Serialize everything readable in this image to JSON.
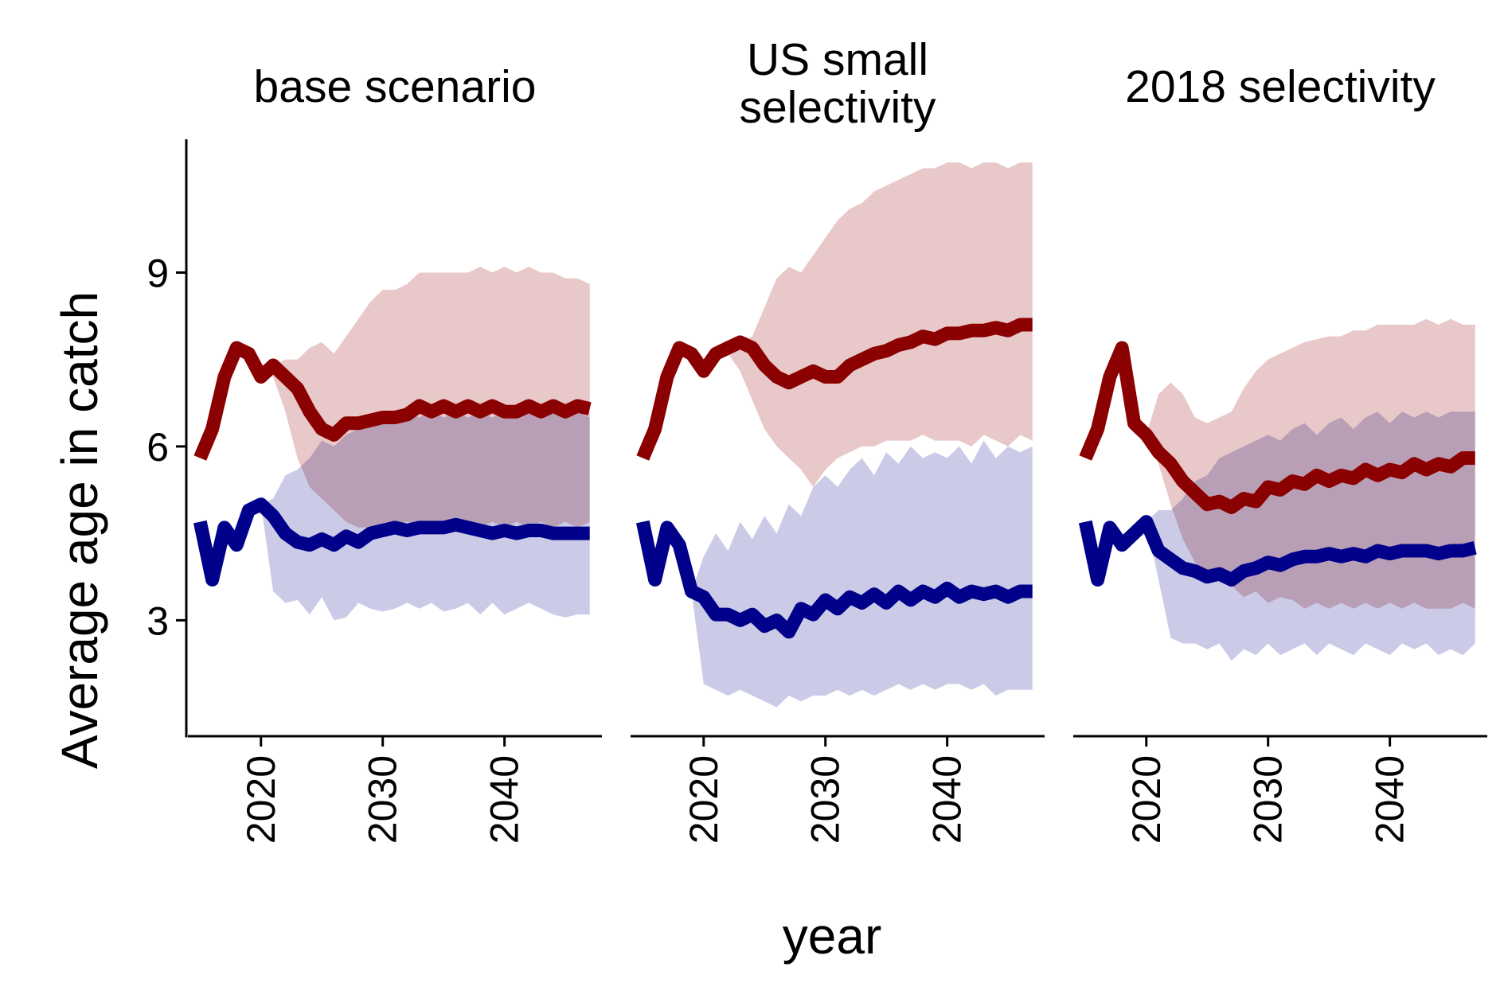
{
  "chart_data": {
    "type": "area",
    "xlabel": "year",
    "ylabel": "Average age in catch",
    "x_ticks": [
      2020,
      2030,
      2040
    ],
    "y_ticks": [
      3,
      6,
      9
    ],
    "xlim": [
      2014,
      2048
    ],
    "ylim": [
      1,
      11.3
    ],
    "grid": false,
    "legend": "none",
    "series_colors": {
      "red_line": "#8B0000",
      "red_band": "#E8C8C8",
      "blue_line": "#00008B",
      "blue_band": "#CBCBE8",
      "overlap": "#B6A3BE"
    },
    "panels": [
      {
        "title_lines": [
          "base scenario"
        ],
        "series": [
          {
            "color": "red",
            "x": [
              2015,
              2016,
              2017,
              2018,
              2019,
              2020,
              2021,
              2022,
              2023,
              2024,
              2025,
              2026,
              2027,
              2028,
              2029,
              2030,
              2031,
              2032,
              2033,
              2034,
              2035,
              2036,
              2037,
              2038,
              2039,
              2040,
              2041,
              2042,
              2043,
              2044,
              2045,
              2046,
              2047
            ],
            "median": [
              5.8,
              6.3,
              7.2,
              7.7,
              7.6,
              7.2,
              7.4,
              7.2,
              7.0,
              6.6,
              6.3,
              6.2,
              6.4,
              6.4,
              6.45,
              6.5,
              6.5,
              6.55,
              6.7,
              6.6,
              6.7,
              6.6,
              6.7,
              6.6,
              6.7,
              6.6,
              6.6,
              6.7,
              6.6,
              6.7,
              6.6,
              6.7,
              6.65
            ],
            "upper": [
              5.8,
              6.3,
              7.2,
              7.7,
              7.6,
              7.2,
              7.4,
              7.5,
              7.5,
              7.7,
              7.8,
              7.6,
              7.9,
              8.2,
              8.5,
              8.7,
              8.7,
              8.8,
              9.0,
              9.0,
              9.0,
              9.0,
              9.0,
              9.1,
              9.0,
              9.1,
              9.0,
              9.1,
              9.0,
              9.0,
              8.9,
              8.9,
              8.8
            ],
            "lower": [
              5.8,
              6.3,
              7.2,
              7.7,
              7.6,
              7.2,
              7.2,
              6.6,
              5.8,
              5.3,
              5.1,
              4.9,
              4.7,
              4.6,
              4.6,
              4.6,
              4.6,
              4.7,
              4.6,
              4.7,
              4.6,
              4.7,
              4.6,
              4.6,
              4.7,
              4.6,
              4.7,
              4.6,
              4.7,
              4.6,
              4.7,
              4.6,
              4.7
            ]
          },
          {
            "color": "blue",
            "x": [
              2015,
              2016,
              2017,
              2018,
              2019,
              2020,
              2021,
              2022,
              2023,
              2024,
              2025,
              2026,
              2027,
              2028,
              2029,
              2030,
              2031,
              2032,
              2033,
              2034,
              2035,
              2036,
              2037,
              2038,
              2039,
              2040,
              2041,
              2042,
              2043,
              2044,
              2045,
              2046,
              2047
            ],
            "median": [
              4.7,
              3.7,
              4.6,
              4.3,
              4.9,
              5.0,
              4.8,
              4.5,
              4.35,
              4.3,
              4.4,
              4.3,
              4.45,
              4.35,
              4.5,
              4.55,
              4.6,
              4.55,
              4.6,
              4.6,
              4.6,
              4.65,
              4.6,
              4.55,
              4.5,
              4.55,
              4.5,
              4.55,
              4.55,
              4.5,
              4.5,
              4.5,
              4.5
            ],
            "upper": [
              4.7,
              3.7,
              4.6,
              4.3,
              4.9,
              5.0,
              5.1,
              5.5,
              5.6,
              5.8,
              6.1,
              6.0,
              6.2,
              6.3,
              6.4,
              6.5,
              6.5,
              6.6,
              6.5,
              6.6,
              6.5,
              6.6,
              6.5,
              6.6,
              6.5,
              6.6,
              6.5,
              6.6,
              6.5,
              6.6,
              6.5,
              6.6,
              6.5
            ],
            "lower": [
              4.7,
              3.7,
              4.6,
              4.3,
              4.9,
              5.0,
              3.5,
              3.3,
              3.35,
              3.1,
              3.4,
              3.0,
              3.05,
              3.3,
              3.2,
              3.15,
              3.2,
              3.3,
              3.2,
              3.3,
              3.15,
              3.2,
              3.3,
              3.1,
              3.3,
              3.1,
              3.2,
              3.3,
              3.2,
              3.1,
              3.05,
              3.1,
              3.1
            ]
          }
        ]
      },
      {
        "title_lines": [
          "US small",
          "selectivity"
        ],
        "series": [
          {
            "color": "red",
            "x": [
              2015,
              2016,
              2017,
              2018,
              2019,
              2020,
              2021,
              2022,
              2023,
              2024,
              2025,
              2026,
              2027,
              2028,
              2029,
              2030,
              2031,
              2032,
              2033,
              2034,
              2035,
              2036,
              2037,
              2038,
              2039,
              2040,
              2041,
              2042,
              2043,
              2044,
              2045,
              2046,
              2047
            ],
            "median": [
              5.8,
              6.3,
              7.2,
              7.7,
              7.6,
              7.3,
              7.6,
              7.7,
              7.8,
              7.7,
              7.4,
              7.2,
              7.1,
              7.2,
              7.3,
              7.2,
              7.2,
              7.4,
              7.5,
              7.6,
              7.65,
              7.75,
              7.8,
              7.9,
              7.85,
              7.95,
              7.95,
              8.0,
              8.0,
              8.05,
              8.0,
              8.1,
              8.1
            ],
            "upper": [
              5.8,
              6.3,
              7.2,
              7.7,
              7.6,
              7.3,
              7.6,
              7.7,
              7.8,
              7.9,
              8.4,
              8.9,
              9.1,
              9.0,
              9.3,
              9.6,
              9.9,
              10.1,
              10.2,
              10.4,
              10.5,
              10.6,
              10.7,
              10.8,
              10.8,
              10.9,
              10.9,
              10.8,
              10.9,
              10.9,
              10.8,
              10.9,
              10.9
            ],
            "lower": [
              5.8,
              6.3,
              7.2,
              7.7,
              7.6,
              7.3,
              7.6,
              7.6,
              7.3,
              6.8,
              6.3,
              6.0,
              5.8,
              5.6,
              5.3,
              5.6,
              5.8,
              5.9,
              6.0,
              6.0,
              6.1,
              6.1,
              6.1,
              6.2,
              6.1,
              6.1,
              6.1,
              6.0,
              6.2,
              6.1,
              6.0,
              6.2,
              6.1
            ]
          },
          {
            "color": "blue",
            "x": [
              2015,
              2016,
              2017,
              2018,
              2019,
              2020,
              2021,
              2022,
              2023,
              2024,
              2025,
              2026,
              2027,
              2028,
              2029,
              2030,
              2031,
              2032,
              2033,
              2034,
              2035,
              2036,
              2037,
              2038,
              2039,
              2040,
              2041,
              2042,
              2043,
              2044,
              2045,
              2046,
              2047
            ],
            "median": [
              4.7,
              3.7,
              4.6,
              4.3,
              3.5,
              3.4,
              3.1,
              3.1,
              3.0,
              3.1,
              2.9,
              3.0,
              2.8,
              3.2,
              3.1,
              3.35,
              3.2,
              3.4,
              3.3,
              3.45,
              3.3,
              3.5,
              3.35,
              3.5,
              3.4,
              3.55,
              3.4,
              3.5,
              3.45,
              3.5,
              3.4,
              3.5,
              3.5
            ],
            "upper": [
              4.7,
              3.7,
              4.6,
              4.3,
              3.5,
              4.1,
              4.5,
              4.2,
              4.7,
              4.4,
              4.8,
              4.5,
              5.0,
              4.8,
              5.3,
              5.5,
              5.3,
              5.6,
              5.8,
              5.5,
              5.9,
              5.7,
              6.0,
              5.8,
              5.9,
              5.8,
              6.0,
              5.7,
              6.1,
              5.8,
              6.0,
              5.9,
              6.0
            ],
            "lower": [
              4.7,
              3.7,
              4.6,
              4.3,
              3.5,
              1.9,
              1.8,
              1.7,
              1.8,
              1.7,
              1.6,
              1.5,
              1.7,
              1.6,
              1.7,
              1.7,
              1.8,
              1.7,
              1.8,
              1.7,
              1.8,
              1.9,
              1.8,
              1.9,
              1.8,
              1.9,
              1.9,
              1.8,
              1.9,
              1.7,
              1.8,
              1.8,
              1.8
            ]
          }
        ]
      },
      {
        "title_lines": [
          "2018 selectivity"
        ],
        "series": [
          {
            "color": "red",
            "x": [
              2015,
              2016,
              2017,
              2018,
              2019,
              2020,
              2021,
              2022,
              2023,
              2024,
              2025,
              2026,
              2027,
              2028,
              2029,
              2030,
              2031,
              2032,
              2033,
              2034,
              2035,
              2036,
              2037,
              2038,
              2039,
              2040,
              2041,
              2042,
              2043,
              2044,
              2045,
              2046,
              2047
            ],
            "median": [
              5.8,
              6.3,
              7.2,
              7.7,
              6.4,
              6.2,
              5.9,
              5.7,
              5.4,
              5.2,
              5.0,
              5.05,
              4.95,
              5.1,
              5.05,
              5.3,
              5.25,
              5.4,
              5.35,
              5.5,
              5.4,
              5.5,
              5.45,
              5.6,
              5.5,
              5.6,
              5.55,
              5.7,
              5.6,
              5.7,
              5.65,
              5.8,
              5.8
            ],
            "upper": [
              5.8,
              6.3,
              7.2,
              7.7,
              6.4,
              6.2,
              6.9,
              7.1,
              6.9,
              6.5,
              6.4,
              6.5,
              6.6,
              7.0,
              7.3,
              7.5,
              7.6,
              7.7,
              7.8,
              7.85,
              7.9,
              7.9,
              8.0,
              8.0,
              8.1,
              8.1,
              8.1,
              8.1,
              8.2,
              8.1,
              8.2,
              8.1,
              8.1
            ],
            "lower": [
              5.8,
              6.3,
              7.2,
              7.7,
              6.4,
              6.2,
              5.7,
              5.0,
              4.4,
              4.0,
              3.8,
              3.7,
              3.6,
              3.4,
              3.5,
              3.3,
              3.4,
              3.35,
              3.2,
              3.3,
              3.2,
              3.3,
              3.2,
              3.3,
              3.2,
              3.3,
              3.2,
              3.3,
              3.2,
              3.2,
              3.2,
              3.3,
              3.2
            ]
          },
          {
            "color": "blue",
            "x": [
              2015,
              2016,
              2017,
              2018,
              2019,
              2020,
              2021,
              2022,
              2023,
              2024,
              2025,
              2026,
              2027,
              2028,
              2029,
              2030,
              2031,
              2032,
              2033,
              2034,
              2035,
              2036,
              2037,
              2038,
              2039,
              2040,
              2041,
              2042,
              2043,
              2044,
              2045,
              2046,
              2047
            ],
            "median": [
              4.7,
              3.7,
              4.6,
              4.3,
              4.5,
              4.7,
              4.2,
              4.05,
              3.9,
              3.85,
              3.75,
              3.8,
              3.7,
              3.85,
              3.9,
              4.0,
              3.95,
              4.05,
              4.1,
              4.1,
              4.15,
              4.1,
              4.15,
              4.1,
              4.2,
              4.15,
              4.2,
              4.2,
              4.2,
              4.15,
              4.2,
              4.2,
              4.25
            ],
            "upper": [
              4.7,
              3.7,
              4.6,
              4.3,
              4.5,
              4.7,
              4.9,
              4.9,
              5.1,
              5.4,
              5.5,
              5.8,
              5.9,
              6.0,
              6.1,
              6.2,
              6.1,
              6.3,
              6.4,
              6.2,
              6.4,
              6.5,
              6.3,
              6.5,
              6.6,
              6.4,
              6.6,
              6.5,
              6.6,
              6.5,
              6.6,
              6.6,
              6.6
            ],
            "lower": [
              4.7,
              3.7,
              4.6,
              4.3,
              4.5,
              4.7,
              3.7,
              2.7,
              2.6,
              2.6,
              2.5,
              2.6,
              2.3,
              2.5,
              2.4,
              2.6,
              2.4,
              2.5,
              2.6,
              2.4,
              2.6,
              2.5,
              2.4,
              2.6,
              2.5,
              2.4,
              2.6,
              2.5,
              2.6,
              2.4,
              2.5,
              2.4,
              2.6
            ]
          }
        ]
      }
    ]
  }
}
